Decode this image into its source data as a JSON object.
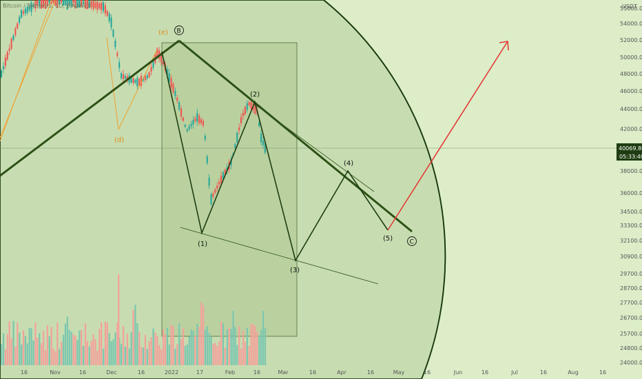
{
  "symbol": {
    "title": "Bitcoin / TetherUS, 1D, BINANCE"
  },
  "chart_data": {
    "type": "candlestick",
    "title": "Bitcoin / TetherUS, 1D, BINANCE",
    "currency": "USDT",
    "y_ticks": [
      55000,
      54000,
      52000,
      50000,
      48000,
      46000,
      44000,
      42000,
      38000,
      36000,
      34500,
      33300,
      32100,
      30900,
      29700,
      28700,
      27700,
      26700,
      25700,
      24800,
      24000
    ],
    "x_ticks": [
      {
        "label": "16",
        "x": 35
      },
      {
        "label": "Nov",
        "x": 80
      },
      {
        "label": "16",
        "x": 120
      },
      {
        "label": "Dec",
        "x": 162
      },
      {
        "label": "16",
        "x": 205
      },
      {
        "label": "2022",
        "x": 249
      },
      {
        "label": "17",
        "x": 290
      },
      {
        "label": "Feb",
        "x": 334
      },
      {
        "label": "16",
        "x": 373
      },
      {
        "label": "Mar",
        "x": 411
      },
      {
        "label": "16",
        "x": 454
      },
      {
        "label": "Apr",
        "x": 496
      },
      {
        "label": "16",
        "x": 538
      },
      {
        "label": "May",
        "x": 579
      },
      {
        "label": "16",
        "x": 620
      },
      {
        "label": "Jun",
        "x": 665
      },
      {
        "label": "16",
        "x": 704
      },
      {
        "label": "Jul",
        "x": 747
      },
      {
        "label": "16",
        "x": 789
      },
      {
        "label": "Aug",
        "x": 832
      },
      {
        "label": "16",
        "x": 875
      }
    ],
    "last_price": "40069.80",
    "countdown": "05:33:40",
    "wave_labels": {
      "corrective": [
        "(d)",
        "(e)"
      ],
      "major": [
        "B",
        "C"
      ],
      "impulse": [
        "(1)",
        "(2)",
        "(3)",
        "(4)",
        "(5)"
      ]
    },
    "colors": {
      "background": "#dcedc8",
      "up": "#26a69a",
      "down": "#ef5350",
      "wave": "#1e3d12",
      "projection": "#e53935",
      "corrective": "#f0a030"
    }
  }
}
